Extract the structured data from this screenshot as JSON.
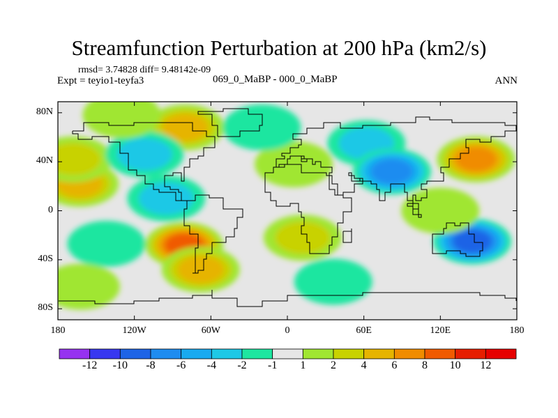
{
  "title": "Streamfunction Perturbation at 200 hPa (km2/s)",
  "stats": "rmsd= 3.74828 diff= 9.48142e-09",
  "experiment": "Expt = teyio1-teyfa3",
  "period": "069_0_MaBP - 000_0_MaBP",
  "season": "ANN",
  "map": {
    "lat_labels": [
      {
        "text": "80N",
        "lat": 80
      },
      {
        "text": "40N",
        "lat": 40
      },
      {
        "text": "0",
        "lat": 0
      },
      {
        "text": "40S",
        "lat": -40
      },
      {
        "text": "80S",
        "lat": -80
      }
    ],
    "lon_labels": [
      {
        "text": "180",
        "lon": -180
      },
      {
        "text": "120W",
        "lon": -120
      },
      {
        "text": "60W",
        "lon": -60
      },
      {
        "text": "0",
        "lon": 0
      },
      {
        "text": "60E",
        "lon": 60
      },
      {
        "text": "120E",
        "lon": 120
      },
      {
        "text": "180",
        "lon": 180
      }
    ],
    "field_features": [
      {
        "lon": -163,
        "lat": 22,
        "value": 6
      },
      {
        "lon": -168,
        "lat": 42,
        "value": 4
      },
      {
        "lon": -80,
        "lat": 68,
        "value": 7
      },
      {
        "lon": -112,
        "lat": 46,
        "value": -5
      },
      {
        "lon": -95,
        "lat": 10,
        "value": -4
      },
      {
        "lon": -142,
        "lat": -27,
        "value": -3
      },
      {
        "lon": -81,
        "lat": -28,
        "value": 10
      },
      {
        "lon": -68,
        "lat": -48,
        "value": 6
      },
      {
        "lon": 12,
        "lat": -22,
        "value": 5
      },
      {
        "lon": 62,
        "lat": 55,
        "value": -4
      },
      {
        "lon": 82,
        "lat": 32,
        "value": -9
      },
      {
        "lon": 145,
        "lat": -25,
        "value": -10
      },
      {
        "lon": 148,
        "lat": 42,
        "value": 8
      },
      {
        "lon": 36,
        "lat": -58,
        "value": -3
      },
      {
        "lon": -162,
        "lat": -62,
        "value": 3
      },
      {
        "lon": 5,
        "lat": 38,
        "value": 3
      },
      {
        "lon": 120,
        "lat": 0,
        "value": 3
      },
      {
        "lon": -20,
        "lat": 68,
        "value": -3
      },
      {
        "lon": -130,
        "lat": 78,
        "value": 2
      }
    ]
  },
  "colorbar": {
    "labels": [
      "-12",
      "-10",
      "-8",
      "-6",
      "-4",
      "-2",
      "-1",
      "1",
      "2",
      "4",
      "6",
      "8",
      "10",
      "12"
    ],
    "colors": [
      "#9632f0",
      "#3838f0",
      "#1e64e6",
      "#1e8cf0",
      "#19aaf0",
      "#1ec8e6",
      "#1ee6a0",
      "#e6e6e6",
      "#a0e632",
      "#c8d200",
      "#e6b400",
      "#f08c00",
      "#f05a00",
      "#e61e00",
      "#e60000"
    ]
  }
}
